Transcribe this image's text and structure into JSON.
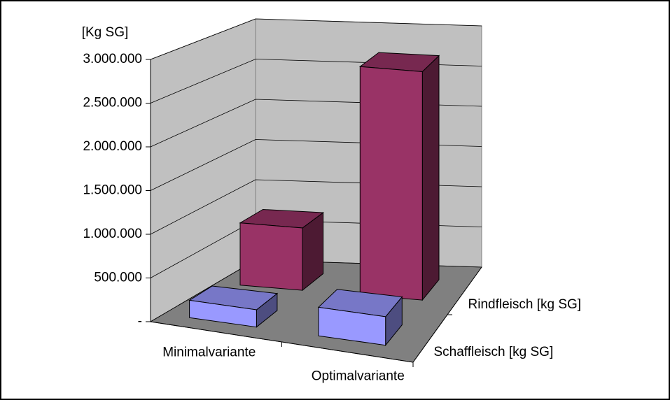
{
  "chart_data": {
    "type": "bar3d",
    "y_label": "[Kg SG]",
    "categories": [
      "Minimalvariante",
      "Optimalvariante"
    ],
    "series": [
      {
        "name": "Schaffleisch [kg SG]",
        "color": "#9999ff",
        "values": [
          200000,
          330000
        ]
      },
      {
        "name": "Rindfleisch [kg SG]",
        "color": "#993366",
        "values": [
          750000,
          2750000
        ]
      }
    ],
    "ylim": [
      0,
      3000000
    ],
    "yticks": [
      {
        "value": 0,
        "label": "-"
      },
      {
        "value": 500000,
        "label": "500.000"
      },
      {
        "value": 1000000,
        "label": "1.000.000"
      },
      {
        "value": 1500000,
        "label": "1.500.000"
      },
      {
        "value": 2000000,
        "label": "2.000.000"
      },
      {
        "value": 2500000,
        "label": "2.500.000"
      },
      {
        "value": 3000000,
        "label": "3.000.000"
      }
    ],
    "grid": true
  }
}
